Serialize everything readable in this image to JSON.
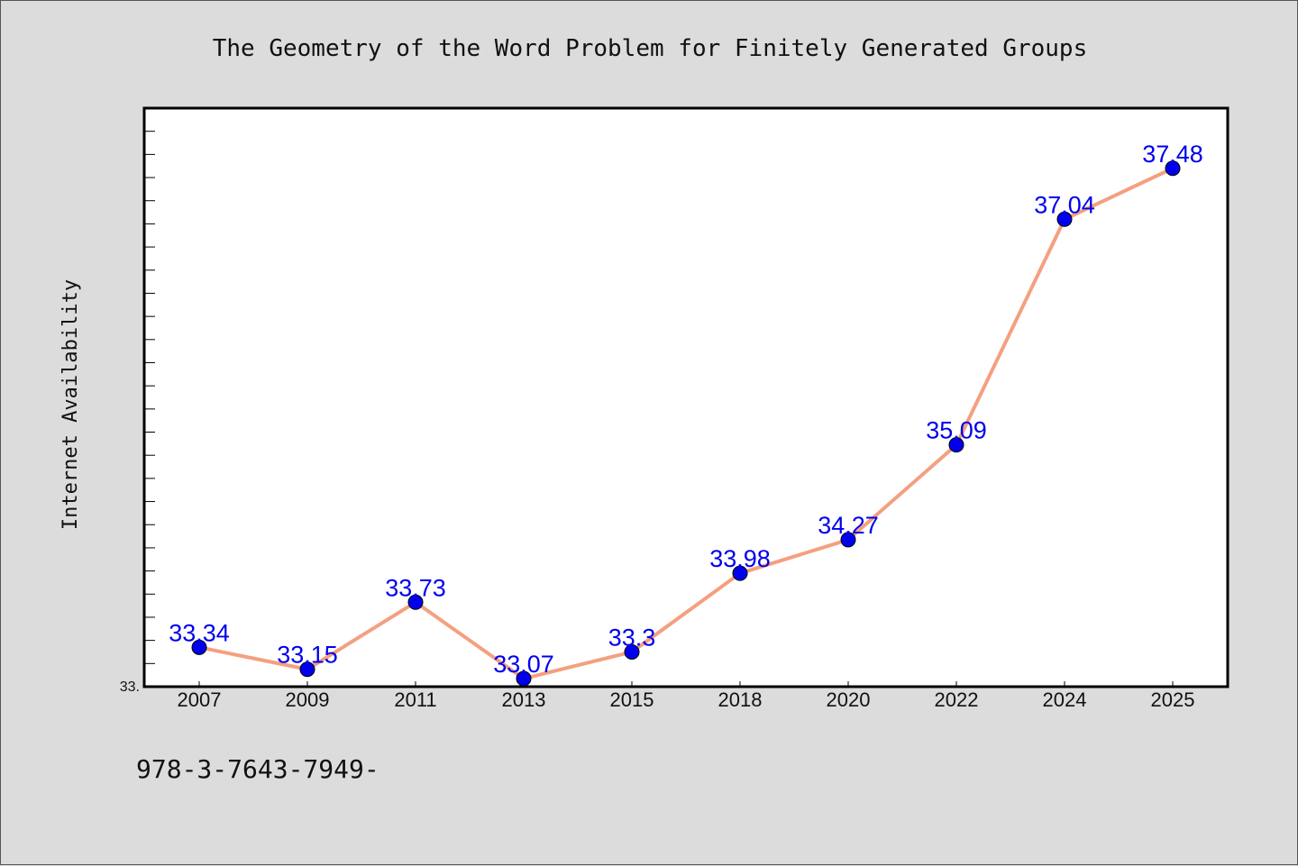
{
  "chart_data": {
    "type": "line",
    "title": "The Geometry of the Word Problem for Finitely Generated Groups",
    "xlabel": "",
    "ylabel": "Internet Availability",
    "categories": [
      "2007",
      "2009",
      "2011",
      "2013",
      "2015",
      "2018",
      "2020",
      "2022",
      "2024",
      "2025"
    ],
    "series": [
      {
        "values": [
          33.34,
          33.15,
          33.73,
          33.07,
          33.3,
          33.98,
          34.27,
          35.09,
          37.04,
          37.48
        ],
        "labels": [
          "33.34",
          "33.15",
          "33.73",
          "33.07",
          "33.3",
          "33.98",
          "34.27",
          "35.09",
          "37.04",
          "37.48"
        ]
      }
    ],
    "ylim": [
      33.0,
      38.0
    ],
    "y_min_label": "33.",
    "grid": false,
    "legend": "none",
    "line_color": "#f4a080",
    "marker_color": "#0000ee",
    "label_color": "#0000ee"
  },
  "footer": {
    "text": "978-3-7643-7949-"
  },
  "colors": {
    "background": "#dcdcdc",
    "plot_background": "#ffffff"
  }
}
